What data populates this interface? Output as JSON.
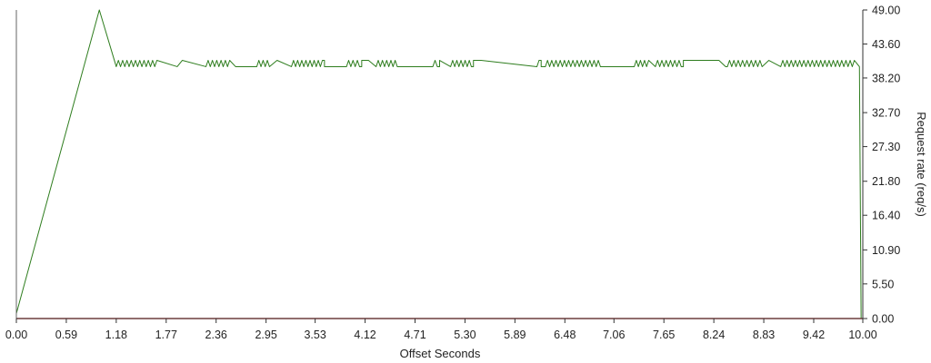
{
  "chart_data": {
    "type": "line",
    "xlabel": "Offset Seconds",
    "ylabel": "Request rate (req/s)",
    "xlim": [
      0,
      10
    ],
    "ylim": [
      0,
      49
    ],
    "x_ticks": [
      "0.00",
      "0.59",
      "1.18",
      "1.77",
      "2.36",
      "2.95",
      "3.53",
      "4.12",
      "4.71",
      "5.30",
      "5.89",
      "6.48",
      "7.06",
      "7.65",
      "8.24",
      "8.83",
      "9.42",
      "10.00"
    ],
    "y_ticks": [
      "0.00",
      "5.50",
      "10.90",
      "16.40",
      "21.80",
      "27.30",
      "32.70",
      "38.20",
      "43.60",
      "49.00"
    ],
    "y_axis_side": "right",
    "grid": false,
    "legend": "none",
    "series": [
      {
        "color": "#2e7d1e",
        "x": [
          0.0,
          0.98,
          1.18,
          1.9,
          1.96,
          2.52,
          2.59,
          2.99,
          3.08,
          3.64,
          3.71,
          4.08,
          4.16,
          4.93,
          5.0,
          5.4,
          5.49,
          6.2,
          6.27,
          6.52,
          6.6,
          7.47,
          7.55,
          7.88,
          7.95,
          8.3,
          8.38,
          8.81,
          8.89,
          9.9,
          9.96,
          9.98
        ],
        "y": [
          0.8,
          49.0,
          40.0,
          40.0,
          41.0,
          41.0,
          40.0,
          40.0,
          41.0,
          41.0,
          40.0,
          40.0,
          41.0,
          41.0,
          40.0,
          40.0,
          41.0,
          41.0,
          40.0,
          40.0,
          41.0,
          41.0,
          40.0,
          40.0,
          41.0,
          41.0,
          40.0,
          40.0,
          41.0,
          41.0,
          40.0,
          0.0
        ],
        "oscillation_segments": [
          [
            1.18,
            1.66
          ],
          [
            2.24,
            2.52
          ],
          [
            2.84,
            2.99
          ],
          [
            3.25,
            3.64
          ],
          [
            3.9,
            4.08
          ],
          [
            4.25,
            4.5
          ],
          [
            4.92,
            5.0
          ],
          [
            5.13,
            5.4
          ],
          [
            6.15,
            6.2
          ],
          [
            6.25,
            6.9
          ],
          [
            7.3,
            7.47
          ],
          [
            7.55,
            7.88
          ],
          [
            8.4,
            8.81
          ],
          [
            9.03,
            9.9
          ]
        ]
      },
      {
        "color": "#e05050",
        "x": [
          0.0,
          10.0
        ],
        "y": [
          0.0,
          0.0
        ]
      }
    ]
  }
}
